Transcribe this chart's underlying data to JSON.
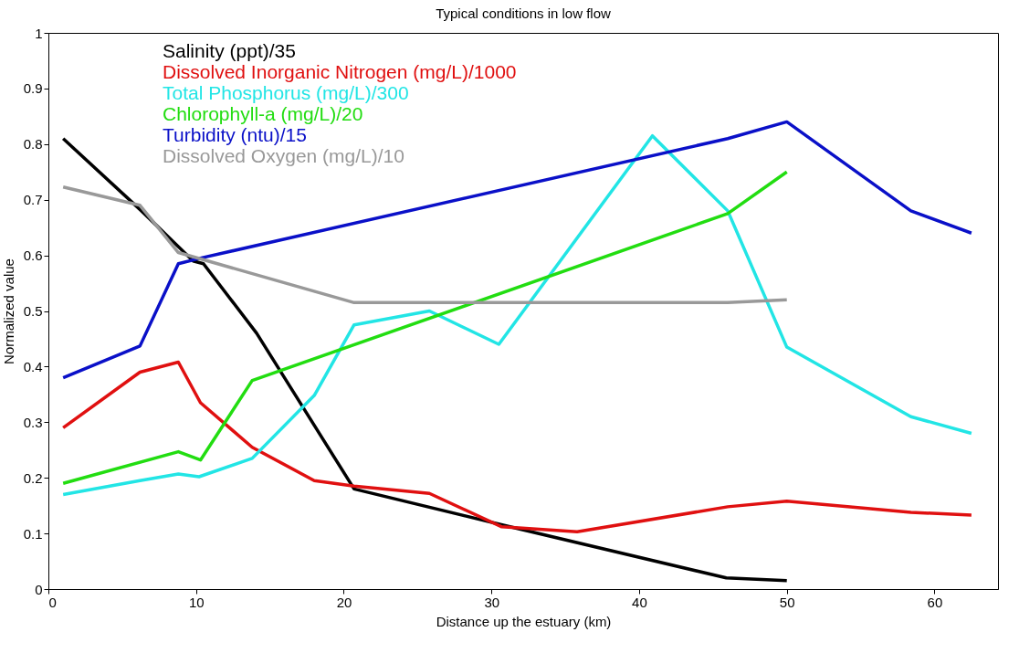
{
  "chart_data": {
    "type": "line",
    "title": "Typical conditions in low flow",
    "xlabel": "Distance up the estuary (km)",
    "ylabel": "Normalized value",
    "xlim": [
      0,
      64.3
    ],
    "xticks": [
      0,
      10,
      20,
      30,
      40,
      50,
      60
    ],
    "ylim": [
      0,
      1
    ],
    "yticks": [
      0,
      0.1,
      0.2,
      0.3,
      0.4,
      0.5,
      0.6,
      0.7,
      0.8,
      0.9,
      1
    ],
    "grid": false,
    "legend": "top left",
    "series": [
      {
        "name": "Salinity (ppt)/35",
        "color": "#000000",
        "x": [
          1,
          6.3,
          9.8,
          10.5,
          14.1,
          20.7,
          30.8,
          45.9,
          50
        ],
        "values": [
          0.81,
          0.68,
          0.59,
          0.585,
          0.46,
          0.18,
          0.115,
          0.02,
          0.015
        ]
      },
      {
        "name": "Dissolved Inorganic Nitrogen (mg/L)/1000",
        "color": "#e01010",
        "x": [
          1,
          6.2,
          8.8,
          10.3,
          13.8,
          18,
          20.7,
          25.8,
          30.7,
          35.8,
          46,
          50,
          58.4,
          62.5
        ],
        "values": [
          0.29,
          0.39,
          0.408,
          0.335,
          0.255,
          0.195,
          0.185,
          0.172,
          0.112,
          0.103,
          0.148,
          0.158,
          0.138,
          0.133
        ]
      },
      {
        "name": "Total Phosphorus (mg/L)/300",
        "color": "#22e5e5",
        "x": [
          1,
          6.2,
          8.8,
          10.2,
          13.8,
          18,
          20.7,
          25.8,
          30.5,
          40.9,
          46,
          50,
          58.4,
          62.5
        ],
        "values": [
          0.17,
          0.195,
          0.207,
          0.202,
          0.235,
          0.348,
          0.475,
          0.5,
          0.44,
          0.815,
          0.68,
          0.435,
          0.31,
          0.28
        ]
      },
      {
        "name": "Chlorophyll-a (mg/L)/20",
        "color": "#22dd11",
        "x": [
          1,
          8.8,
          10.3,
          13.8,
          46,
          50
        ],
        "values": [
          0.19,
          0.247,
          0.232,
          0.375,
          0.675,
          0.75
        ]
      },
      {
        "name": "Turbidity (ntu)/15",
        "color": "#0a10c8",
        "x": [
          1,
          6.2,
          8.8,
          10.3,
          46,
          50,
          58.4,
          62.5
        ],
        "values": [
          0.38,
          0.437,
          0.585,
          0.595,
          0.81,
          0.84,
          0.68,
          0.64
        ]
      },
      {
        "name": "Dissolved Oxygen (mg/L)/10",
        "color": "#999999",
        "x": [
          1,
          6.2,
          8.8,
          20.7,
          46,
          50
        ],
        "values": [
          0.723,
          0.69,
          0.605,
          0.515,
          0.515,
          0.52
        ]
      }
    ]
  }
}
